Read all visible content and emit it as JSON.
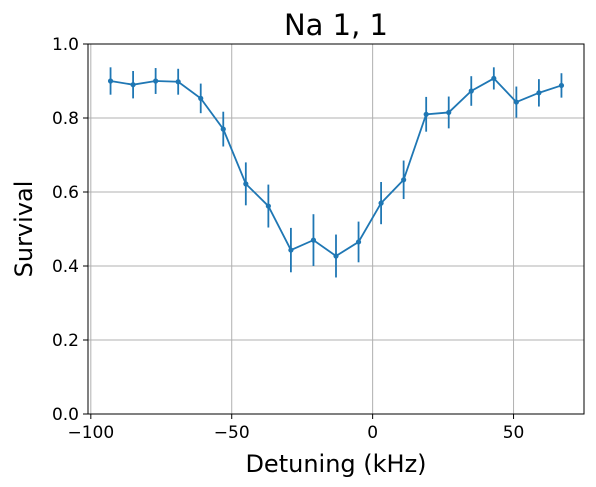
{
  "chart_data": {
    "type": "line",
    "title": "Na 1, 1",
    "xlabel": "Detuning (kHz)",
    "ylabel": "Survival",
    "xlim": [
      -101,
      75
    ],
    "ylim": [
      0.0,
      1.0
    ],
    "grid": true,
    "xticks": [
      -100,
      -50,
      0,
      50
    ],
    "xtick_labels": [
      "−100",
      "−50",
      "0",
      "50"
    ],
    "yticks": [
      0.0,
      0.2,
      0.4,
      0.6,
      0.8,
      1.0
    ],
    "ytick_labels": [
      "0.0",
      "0.2",
      "0.4",
      "0.6",
      "0.8",
      "1.0"
    ],
    "color": "#1f77b4",
    "series": [
      {
        "x": [
          -93,
          -85,
          -77,
          -69,
          -61,
          -53,
          -45,
          -37,
          -29,
          -21,
          -13,
          -5,
          3,
          11,
          19,
          27,
          35,
          43,
          51,
          59,
          67
        ],
        "y": [
          0.9,
          0.89,
          0.9,
          0.898,
          0.853,
          0.77,
          0.622,
          0.562,
          0.443,
          0.47,
          0.427,
          0.465,
          0.57,
          0.633,
          0.81,
          0.815,
          0.873,
          0.907,
          0.843,
          0.868,
          0.888
        ],
        "yerr": [
          0.037,
          0.037,
          0.035,
          0.035,
          0.04,
          0.047,
          0.058,
          0.058,
          0.06,
          0.07,
          0.058,
          0.055,
          0.057,
          0.052,
          0.047,
          0.043,
          0.04,
          0.03,
          0.042,
          0.037,
          0.033
        ]
      }
    ]
  }
}
